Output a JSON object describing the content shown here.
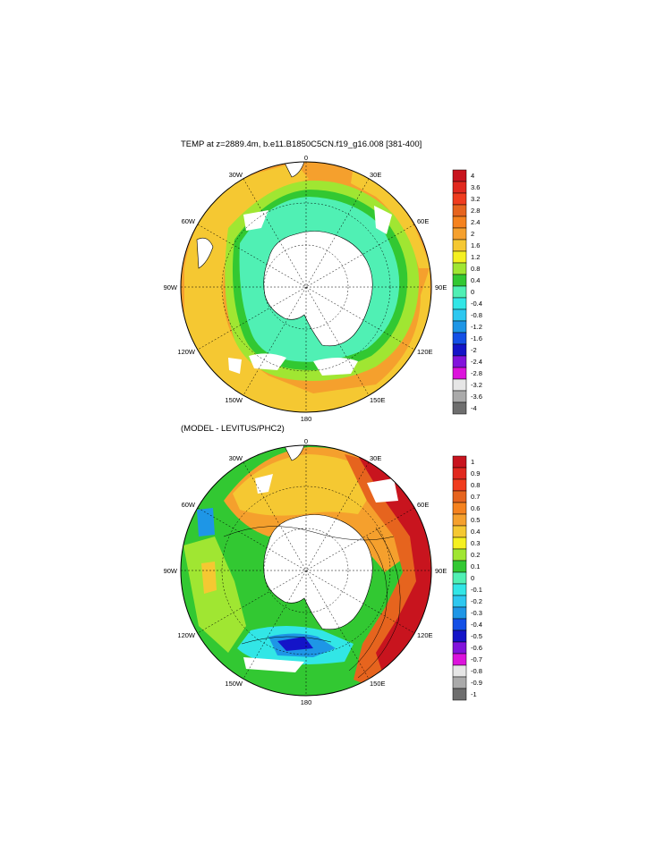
{
  "panels": [
    {
      "title": "TEMP at z=2889.4m, b.e11.B1850C5CN.f19_g16.008 [381-400]",
      "colorbar": {
        "labels": [
          "4",
          "3.6",
          "3.2",
          "2.8",
          "2.4",
          "2",
          "1.6",
          "1.2",
          "0.8",
          "0.4",
          "0",
          "-0.4",
          "-0.8",
          "-1.2",
          "-1.6",
          "-2",
          "-2.4",
          "-2.8",
          "-3.2",
          "-3.6",
          "-4"
        ],
        "colors": [
          "#c8141e",
          "#e1281e",
          "#f03c1e",
          "#e6641e",
          "#f5821e",
          "#f5a02d",
          "#f5c832",
          "#f5f020",
          "#a0e632",
          "#32c832",
          "#50f0b4",
          "#32e6e6",
          "#2dc8f0",
          "#1e96e6",
          "#1450e6",
          "#1414c8",
          "#8214dc",
          "#dc14dc",
          "#e6e6e6",
          "#aaaaaa",
          "#6e6e6e"
        ]
      }
    },
    {
      "title": "(MODEL - LEVITUS/PHC2)",
      "colorbar": {
        "labels": [
          "1",
          "0.9",
          "0.8",
          "0.7",
          "0.6",
          "0.5",
          "0.4",
          "0.3",
          "0.2",
          "0.1",
          "0",
          "-0.1",
          "-0.2",
          "-0.3",
          "-0.4",
          "-0.5",
          "-0.6",
          "-0.7",
          "-0.8",
          "-0.9",
          "-1"
        ],
        "colors": [
          "#c8141e",
          "#e1281e",
          "#f03c1e",
          "#e6641e",
          "#f5821e",
          "#f5a02d",
          "#f5c832",
          "#f5f020",
          "#a0e632",
          "#32c832",
          "#50f0b4",
          "#32e6e6",
          "#2dc8f0",
          "#1e96e6",
          "#1450e6",
          "#1414c8",
          "#8214dc",
          "#dc14dc",
          "#e6e6e6",
          "#aaaaaa",
          "#6e6e6e"
        ]
      }
    }
  ],
  "longitude_labels": [
    "0",
    "30E",
    "60E",
    "90E",
    "120E",
    "150E",
    "180",
    "150W",
    "120W",
    "90W",
    "60W",
    "30W"
  ]
}
